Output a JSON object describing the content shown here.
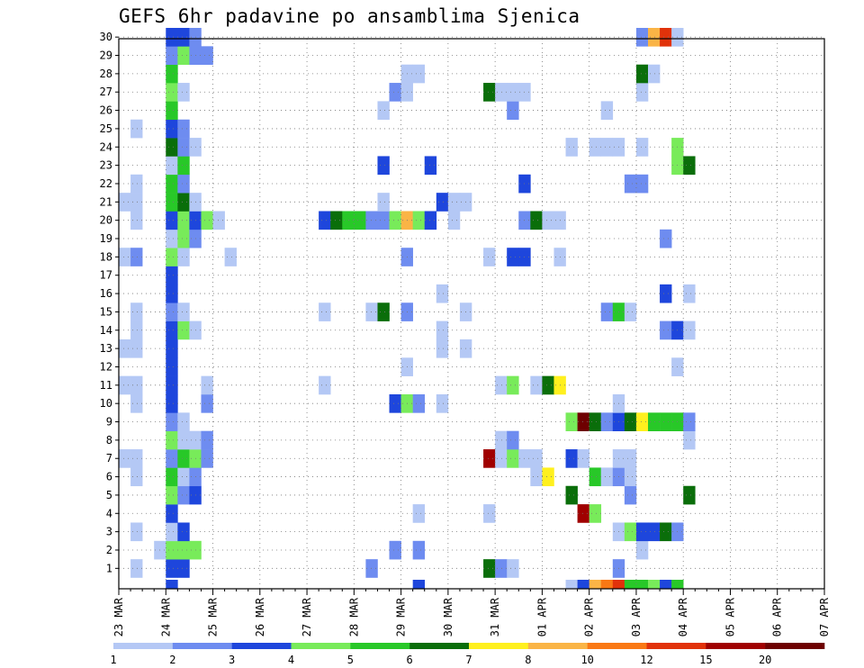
{
  "title": "GEFS 6hr padavine po ansamblima Sjenica",
  "chart_data": {
    "type": "heatmap",
    "title": "GEFS 6hr padavine po ansamblima Sjenica",
    "y_members": [
      1,
      2,
      3,
      4,
      5,
      6,
      7,
      8,
      9,
      10,
      11,
      12,
      13,
      14,
      15,
      16,
      17,
      18,
      19,
      20,
      21,
      22,
      23,
      24,
      25,
      26,
      27,
      28,
      29,
      30
    ],
    "x_tick_labels": [
      "23 MAR",
      "24 MAR",
      "25 MAR",
      "26 MAR",
      "27 MAR",
      "28 MAR",
      "29 MAR",
      "30 MAR",
      "31 MAR",
      "01 APR",
      "02 APR",
      "03 APR",
      "04 APR",
      "05 APR",
      "06 APR",
      "07 APR"
    ],
    "x_unit": "6-hour step (4 steps per day, step 0 = 23 MAR 00Z)",
    "grid": true,
    "colorbar": {
      "labels": [
        "1",
        "2",
        "3",
        "4",
        "5",
        "6",
        "7",
        "8",
        "10",
        "12",
        "15",
        "20"
      ],
      "colors": [
        "#b4c8f5",
        "#6e8cf0",
        "#1e46dc",
        "#78eb5a",
        "#28c828",
        "#0a6e0a",
        "#fff01e",
        "#fab446",
        "#fa7814",
        "#e1320a",
        "#a00000",
        "#6e0000"
      ]
    },
    "cells": [
      {
        "member": 1,
        "cells": [
          [
            1,
            1
          ],
          [
            4,
            3
          ],
          [
            5,
            3
          ],
          [
            21,
            2
          ],
          [
            31,
            6
          ],
          [
            32,
            2
          ],
          [
            33,
            1
          ],
          [
            42,
            2
          ]
        ]
      },
      {
        "member": 2,
        "cells": [
          [
            3,
            1
          ],
          [
            4,
            4
          ],
          [
            5,
            4
          ],
          [
            6,
            4
          ],
          [
            23,
            2
          ],
          [
            25,
            2
          ],
          [
            44,
            1
          ]
        ]
      },
      {
        "member": 3,
        "cells": [
          [
            1,
            1
          ],
          [
            4,
            1
          ],
          [
            5,
            3
          ],
          [
            42,
            1
          ],
          [
            43,
            4
          ],
          [
            44,
            3
          ],
          [
            45,
            3
          ],
          [
            46,
            6
          ],
          [
            47,
            2
          ]
        ]
      },
      {
        "member": 4,
        "cells": [
          [
            4,
            3
          ],
          [
            25,
            1
          ],
          [
            31,
            1
          ],
          [
            39,
            11
          ],
          [
            40,
            4
          ]
        ]
      },
      {
        "member": 5,
        "cells": [
          [
            4,
            4
          ],
          [
            5,
            2
          ],
          [
            6,
            3
          ],
          [
            38,
            6
          ],
          [
            43,
            2
          ],
          [
            48,
            6
          ]
        ]
      },
      {
        "member": 6,
        "cells": [
          [
            1,
            1
          ],
          [
            4,
            5
          ],
          [
            5,
            1
          ],
          [
            6,
            2
          ],
          [
            35,
            1
          ],
          [
            36,
            7
          ],
          [
            40,
            5
          ],
          [
            41,
            1
          ],
          [
            42,
            2
          ],
          [
            43,
            1
          ]
        ]
      },
      {
        "member": 7,
        "cells": [
          [
            0,
            1
          ],
          [
            1,
            1
          ],
          [
            4,
            2
          ],
          [
            5,
            5
          ],
          [
            6,
            4
          ],
          [
            7,
            2
          ],
          [
            31,
            11
          ],
          [
            32,
            1
          ],
          [
            33,
            4
          ],
          [
            34,
            1
          ],
          [
            35,
            1
          ],
          [
            38,
            3
          ],
          [
            39,
            1
          ],
          [
            42,
            1
          ],
          [
            43,
            1
          ]
        ]
      },
      {
        "member": 8,
        "cells": [
          [
            4,
            4
          ],
          [
            5,
            1
          ],
          [
            6,
            1
          ],
          [
            7,
            2
          ],
          [
            32,
            1
          ],
          [
            33,
            2
          ],
          [
            48,
            1
          ]
        ]
      },
      {
        "member": 9,
        "cells": [
          [
            4,
            2
          ],
          [
            5,
            1
          ],
          [
            38,
            4
          ],
          [
            39,
            12
          ],
          [
            40,
            6
          ],
          [
            41,
            2
          ],
          [
            42,
            3
          ],
          [
            43,
            6
          ],
          [
            44,
            7
          ],
          [
            45,
            5
          ],
          [
            46,
            5
          ],
          [
            47,
            5
          ],
          [
            48,
            2
          ]
        ]
      },
      {
        "member": 10,
        "cells": [
          [
            1,
            1
          ],
          [
            4,
            3
          ],
          [
            7,
            2
          ],
          [
            23,
            3
          ],
          [
            24,
            4
          ],
          [
            25,
            2
          ],
          [
            27,
            1
          ],
          [
            42,
            1
          ]
        ]
      },
      {
        "member": 11,
        "cells": [
          [
            0,
            1
          ],
          [
            1,
            1
          ],
          [
            4,
            3
          ],
          [
            7,
            1
          ],
          [
            17,
            1
          ],
          [
            32,
            1
          ],
          [
            33,
            4
          ],
          [
            35,
            1
          ],
          [
            36,
            6
          ],
          [
            37,
            7
          ]
        ]
      },
      {
        "member": 12,
        "cells": [
          [
            4,
            3
          ],
          [
            24,
            1
          ],
          [
            47,
            1
          ]
        ]
      },
      {
        "member": 13,
        "cells": [
          [
            0,
            1
          ],
          [
            1,
            1
          ],
          [
            4,
            3
          ],
          [
            27,
            1
          ],
          [
            29,
            1
          ]
        ]
      },
      {
        "member": 14,
        "cells": [
          [
            1,
            1
          ],
          [
            4,
            3
          ],
          [
            5,
            4
          ],
          [
            6,
            1
          ],
          [
            27,
            1
          ],
          [
            46,
            2
          ],
          [
            47,
            3
          ],
          [
            48,
            1
          ]
        ]
      },
      {
        "member": 15,
        "cells": [
          [
            1,
            1
          ],
          [
            4,
            2
          ],
          [
            5,
            1
          ],
          [
            17,
            1
          ],
          [
            21,
            1
          ],
          [
            22,
            6
          ],
          [
            24,
            2
          ],
          [
            29,
            1
          ],
          [
            41,
            2
          ],
          [
            42,
            5
          ],
          [
            43,
            1
          ]
        ]
      },
      {
        "member": 16,
        "cells": [
          [
            4,
            3
          ],
          [
            27,
            1
          ],
          [
            46,
            3
          ],
          [
            48,
            1
          ]
        ]
      },
      {
        "member": 17,
        "cells": [
          [
            4,
            3
          ]
        ]
      },
      {
        "member": 18,
        "cells": [
          [
            0,
            1
          ],
          [
            1,
            2
          ],
          [
            4,
            4
          ],
          [
            5,
            1
          ],
          [
            9,
            1
          ],
          [
            24,
            2
          ],
          [
            31,
            1
          ],
          [
            33,
            3
          ],
          [
            34,
            3
          ],
          [
            37,
            1
          ]
        ]
      },
      {
        "member": 19,
        "cells": [
          [
            4,
            1
          ],
          [
            5,
            4
          ],
          [
            6,
            2
          ],
          [
            46,
            2
          ]
        ]
      },
      {
        "member": 20,
        "cells": [
          [
            1,
            1
          ],
          [
            4,
            3
          ],
          [
            5,
            4
          ],
          [
            6,
            3
          ],
          [
            7,
            4
          ],
          [
            8,
            1
          ],
          [
            17,
            3
          ],
          [
            18,
            6
          ],
          [
            19,
            5
          ],
          [
            20,
            5
          ],
          [
            21,
            2
          ],
          [
            22,
            2
          ],
          [
            23,
            4
          ],
          [
            24,
            8
          ],
          [
            25,
            4
          ],
          [
            26,
            3
          ],
          [
            28,
            1
          ],
          [
            34,
            2
          ],
          [
            35,
            6
          ],
          [
            36,
            1
          ],
          [
            37,
            1
          ]
        ]
      },
      {
        "member": 21,
        "cells": [
          [
            0,
            1
          ],
          [
            1,
            1
          ],
          [
            4,
            5
          ],
          [
            5,
            6
          ],
          [
            6,
            1
          ],
          [
            22,
            1
          ],
          [
            27,
            3
          ],
          [
            28,
            1
          ],
          [
            29,
            1
          ]
        ]
      },
      {
        "member": 22,
        "cells": [
          [
            1,
            1
          ],
          [
            4,
            5
          ],
          [
            5,
            2
          ],
          [
            34,
            3
          ],
          [
            43,
            2
          ],
          [
            44,
            2
          ]
        ]
      },
      {
        "member": 23,
        "cells": [
          [
            4,
            1
          ],
          [
            5,
            5
          ],
          [
            22,
            3
          ],
          [
            26,
            3
          ],
          [
            47,
            4
          ],
          [
            48,
            6
          ]
        ]
      },
      {
        "member": 24,
        "cells": [
          [
            4,
            6
          ],
          [
            5,
            2
          ],
          [
            6,
            1
          ],
          [
            38,
            1
          ],
          [
            40,
            1
          ],
          [
            41,
            1
          ],
          [
            42,
            1
          ],
          [
            44,
            1
          ],
          [
            47,
            4
          ]
        ]
      },
      {
        "member": 25,
        "cells": [
          [
            1,
            1
          ],
          [
            4,
            3
          ],
          [
            5,
            2
          ]
        ]
      },
      {
        "member": 26,
        "cells": [
          [
            4,
            5
          ],
          [
            22,
            1
          ],
          [
            33,
            2
          ],
          [
            41,
            1
          ]
        ]
      },
      {
        "member": 27,
        "cells": [
          [
            4,
            4
          ],
          [
            5,
            1
          ],
          [
            23,
            2
          ],
          [
            24,
            1
          ],
          [
            31,
            6
          ],
          [
            32,
            1
          ],
          [
            33,
            1
          ],
          [
            34,
            1
          ],
          [
            44,
            1
          ]
        ]
      },
      {
        "member": 28,
        "cells": [
          [
            4,
            5
          ],
          [
            24,
            1
          ],
          [
            25,
            1
          ],
          [
            44,
            6
          ],
          [
            45,
            1
          ]
        ]
      },
      {
        "member": 29,
        "cells": [
          [
            4,
            2
          ],
          [
            5,
            4
          ],
          [
            6,
            2
          ],
          [
            7,
            2
          ]
        ]
      },
      {
        "member": 30,
        "cells": [
          [
            4,
            3
          ],
          [
            5,
            3
          ],
          [
            6,
            2
          ],
          [
            44,
            2
          ],
          [
            45,
            8
          ],
          [
            46,
            10
          ],
          [
            47,
            1
          ]
        ]
      }
    ],
    "bottom_partial_row": [
      [
        4,
        3
      ],
      [
        25,
        3
      ],
      [
        38,
        1
      ],
      [
        39,
        3
      ],
      [
        40,
        8
      ],
      [
        41,
        9
      ],
      [
        42,
        10
      ],
      [
        43,
        5
      ],
      [
        44,
        5
      ],
      [
        45,
        4
      ],
      [
        46,
        3
      ],
      [
        47,
        5
      ]
    ]
  }
}
